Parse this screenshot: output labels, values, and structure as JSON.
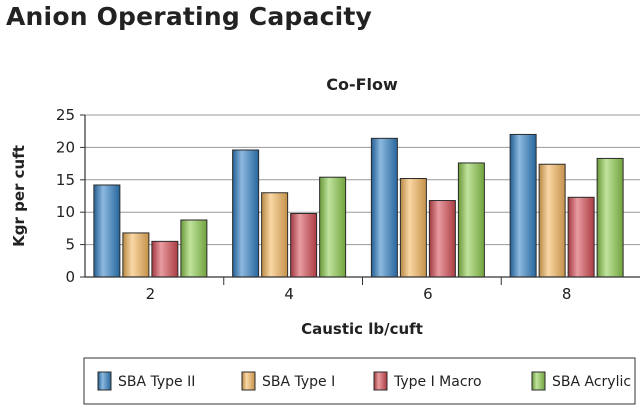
{
  "page": {
    "title": "Anion Operating Capacity"
  },
  "chart_data": {
    "type": "bar",
    "title": "Co-Flow",
    "xlabel": "Caustic lb/cuft",
    "ylabel": "Kgr per cuft",
    "categories": [
      "2",
      "4",
      "6",
      "8"
    ],
    "ylim": [
      0,
      25
    ],
    "yticks": [
      0,
      5,
      10,
      15,
      20,
      25
    ],
    "grid": true,
    "legend": "bottom",
    "series": [
      {
        "name": "SBA Type II",
        "values": [
          14.2,
          19.6,
          21.4,
          22.0
        ],
        "color": "#2f7fc4"
      },
      {
        "name": "SBA Type I",
        "values": [
          6.8,
          13.0,
          15.2,
          17.4
        ],
        "color": "#f5b75c"
      },
      {
        "name": "Type I Macro",
        "values": [
          5.5,
          9.8,
          11.8,
          12.3
        ],
        "color": "#d64b54"
      },
      {
        "name": "SBA Acrylic",
        "values": [
          8.8,
          15.4,
          17.6,
          18.3
        ],
        "color": "#8dcc4c"
      }
    ]
  }
}
